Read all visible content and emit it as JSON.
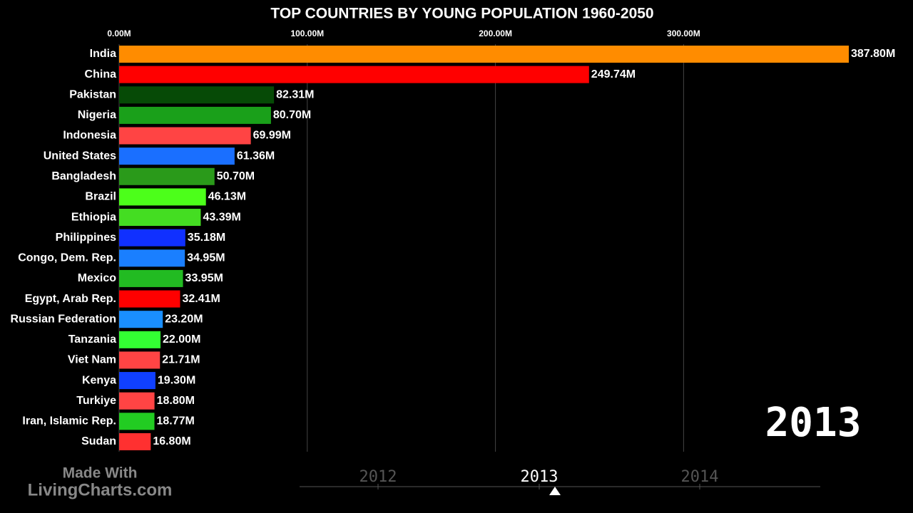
{
  "chart_data": {
    "type": "bar",
    "orientation": "horizontal",
    "title": "TOP COUNTRIES BY YOUNG POPULATION 1960-2050",
    "categories": [
      "India",
      "China",
      "Pakistan",
      "Nigeria",
      "Indonesia",
      "United States",
      "Bangladesh",
      "Brazil",
      "Ethiopia",
      "Philippines",
      "Congo, Dem. Rep.",
      "Mexico",
      "Egypt, Arab Rep.",
      "Russian Federation",
      "Tanzania",
      "Viet Nam",
      "Kenya",
      "Turkiye",
      "Iran, Islamic Rep.",
      "Sudan"
    ],
    "values": [
      387.8,
      249.74,
      82.31,
      80.7,
      69.99,
      61.36,
      50.7,
      46.13,
      43.39,
      35.18,
      34.95,
      33.95,
      32.41,
      23.2,
      22.0,
      21.71,
      19.3,
      18.8,
      18.77,
      16.8
    ],
    "value_labels": [
      "387.80M",
      "249.74M",
      "82.31M",
      "80.70M",
      "69.99M",
      "61.36M",
      "50.70M",
      "46.13M",
      "43.39M",
      "35.18M",
      "34.95M",
      "33.95M",
      "32.41M",
      "23.20M",
      "22.00M",
      "21.71M",
      "19.30M",
      "18.80M",
      "18.77M",
      "16.80M"
    ],
    "colors": [
      "#ff8c00",
      "#ff0000",
      "#064a06",
      "#1aa01a",
      "#ff4444",
      "#1a6fff",
      "#2a9a1a",
      "#4cff1a",
      "#44dd22",
      "#1030ff",
      "#1a7fff",
      "#22bb22",
      "#ff0000",
      "#1a8fff",
      "#33ff33",
      "#ff4444",
      "#1040ff",
      "#ff4444",
      "#22cc22",
      "#ff3030"
    ],
    "xlim": [
      0,
      387.8
    ],
    "xticks": [
      {
        "value": 0,
        "label": "0.00M"
      },
      {
        "value": 100,
        "label": "100.00M"
      },
      {
        "value": 200,
        "label": "200.00M"
      },
      {
        "value": 300,
        "label": "300.00M"
      }
    ],
    "grid": true,
    "year": "2013",
    "timeline": [
      "2012",
      "2013",
      "2014"
    ],
    "watermark": [
      "Made With",
      "LivingCharts.com"
    ]
  }
}
